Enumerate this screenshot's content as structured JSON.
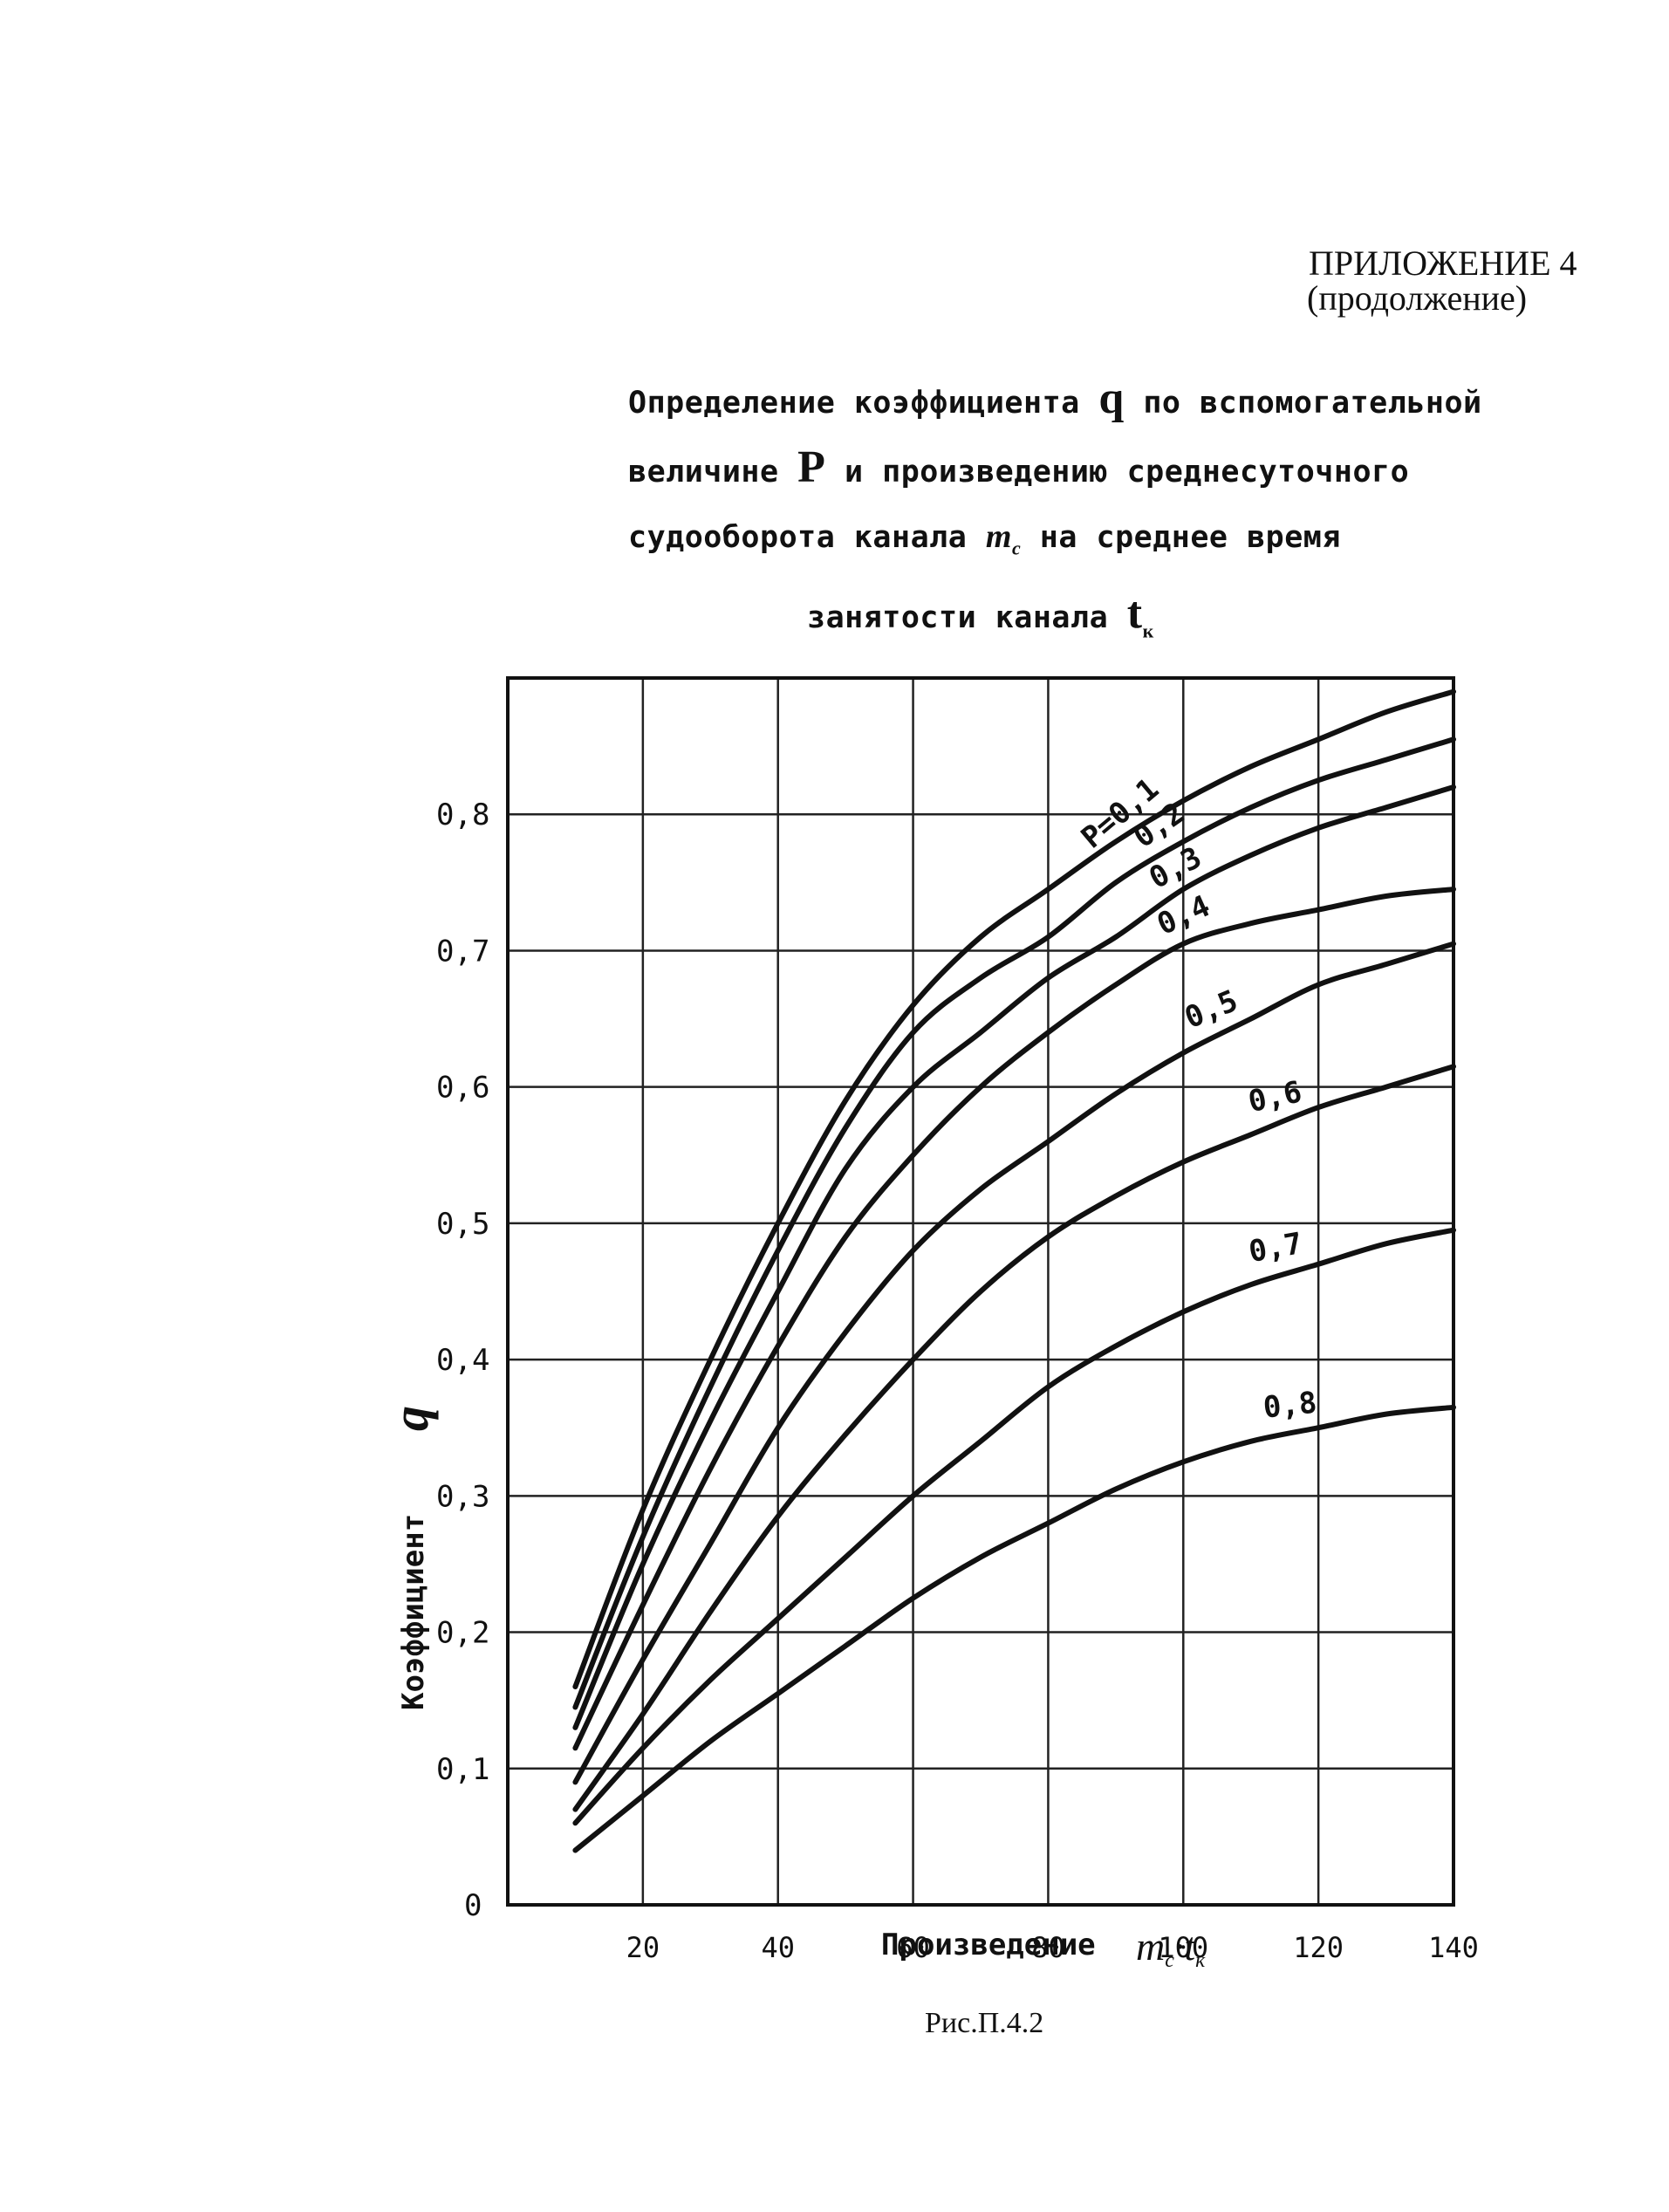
{
  "header": {
    "appendix": "ПРИЛОЖЕНИЕ 4",
    "continuation": "(продолжение)"
  },
  "title": {
    "line1_a": "Определение коэффициента",
    "q": "q",
    "line1_b": "по вспомогательной",
    "line2_a": "величине",
    "p": "P",
    "line2_b": "и произведению среднесуточного",
    "line3_a": "судооборота канала",
    "mc": "m",
    "mc_sub": "c",
    "line3_b": "на среднее время",
    "line4_a": "занятости канала",
    "tk": "t",
    "tk_sub": "к"
  },
  "caption": "Рис.П.4.2",
  "chart_data": {
    "type": "line",
    "title": "",
    "xlabel": "Произведение",
    "xlabel_math": "m_c·t_к",
    "ylabel": "Коэффициент",
    "ylabel_symbol": "q",
    "xlim": [
      0,
      140
    ],
    "ylim": [
      0,
      0.9
    ],
    "grid": true,
    "x_ticks": [
      {
        "value": 20,
        "label": "20"
      },
      {
        "value": 40,
        "label": "40"
      },
      {
        "value": 60,
        "label": "60"
      },
      {
        "value": 80,
        "label": "80"
      },
      {
        "value": 100,
        "label": "100"
      },
      {
        "value": 120,
        "label": "120"
      },
      {
        "value": 140,
        "label": "140"
      }
    ],
    "y_ticks": [
      {
        "value": 0,
        "label": "0"
      },
      {
        "value": 0.1,
        "label": "0,1"
      },
      {
        "value": 0.2,
        "label": "0,2"
      },
      {
        "value": 0.3,
        "label": "0,3"
      },
      {
        "value": 0.4,
        "label": "0,4"
      },
      {
        "value": 0.5,
        "label": "0,5"
      },
      {
        "value": 0.6,
        "label": "0,6"
      },
      {
        "value": 0.7,
        "label": "0,7"
      },
      {
        "value": 0.8,
        "label": "0,8"
      }
    ],
    "series": [
      {
        "name": "P=0,1",
        "x": [
          10,
          20,
          30,
          40,
          50,
          60,
          70,
          80,
          90,
          100,
          110,
          120,
          130,
          140
        ],
        "values": [
          0.16,
          0.29,
          0.4,
          0.5,
          0.59,
          0.66,
          0.71,
          0.745,
          0.78,
          0.81,
          0.835,
          0.855,
          0.875,
          0.89
        ]
      },
      {
        "name": "0,2",
        "x": [
          10,
          20,
          30,
          40,
          50,
          60,
          70,
          80,
          90,
          100,
          110,
          120,
          130,
          140
        ],
        "values": [
          0.145,
          0.27,
          0.38,
          0.48,
          0.57,
          0.64,
          0.68,
          0.71,
          0.75,
          0.78,
          0.805,
          0.825,
          0.84,
          0.855
        ]
      },
      {
        "name": "0,3",
        "x": [
          10,
          20,
          30,
          40,
          50,
          60,
          70,
          80,
          90,
          100,
          110,
          120,
          130,
          140
        ],
        "values": [
          0.13,
          0.25,
          0.355,
          0.45,
          0.54,
          0.6,
          0.64,
          0.68,
          0.71,
          0.745,
          0.77,
          0.79,
          0.805,
          0.82
        ]
      },
      {
        "name": "0,4",
        "x": [
          10,
          20,
          30,
          40,
          50,
          60,
          70,
          80,
          90,
          100,
          110,
          120,
          130,
          140
        ],
        "values": [
          0.115,
          0.22,
          0.32,
          0.41,
          0.49,
          0.55,
          0.6,
          0.64,
          0.675,
          0.705,
          0.72,
          0.73,
          0.74,
          0.745
        ]
      },
      {
        "name": "0,5",
        "x": [
          10,
          20,
          30,
          40,
          50,
          60,
          70,
          80,
          90,
          100,
          110,
          120,
          130,
          140
        ],
        "values": [
          0.09,
          0.18,
          0.265,
          0.35,
          0.42,
          0.48,
          0.525,
          0.56,
          0.595,
          0.625,
          0.65,
          0.675,
          0.69,
          0.705
        ]
      },
      {
        "name": "0,6",
        "x": [
          10,
          20,
          30,
          40,
          50,
          60,
          70,
          80,
          90,
          100,
          110,
          120,
          130,
          140
        ],
        "values": [
          0.07,
          0.14,
          0.215,
          0.285,
          0.345,
          0.4,
          0.45,
          0.49,
          0.52,
          0.545,
          0.565,
          0.585,
          0.6,
          0.615
        ]
      },
      {
        "name": "0,7",
        "x": [
          10,
          20,
          30,
          40,
          50,
          60,
          70,
          80,
          90,
          100,
          110,
          120,
          130,
          140
        ],
        "values": [
          0.06,
          0.115,
          0.165,
          0.21,
          0.255,
          0.3,
          0.34,
          0.38,
          0.41,
          0.435,
          0.455,
          0.47,
          0.485,
          0.495
        ]
      },
      {
        "name": "0,8",
        "x": [
          10,
          20,
          30,
          40,
          50,
          60,
          70,
          80,
          90,
          100,
          110,
          120,
          130,
          140
        ],
        "values": [
          0.04,
          0.08,
          0.12,
          0.155,
          0.19,
          0.225,
          0.255,
          0.28,
          0.305,
          0.325,
          0.34,
          0.35,
          0.36,
          0.365
        ]
      }
    ]
  },
  "styles": {
    "ink": "#111111",
    "grid": "#222222",
    "paper": "#ffffff"
  }
}
